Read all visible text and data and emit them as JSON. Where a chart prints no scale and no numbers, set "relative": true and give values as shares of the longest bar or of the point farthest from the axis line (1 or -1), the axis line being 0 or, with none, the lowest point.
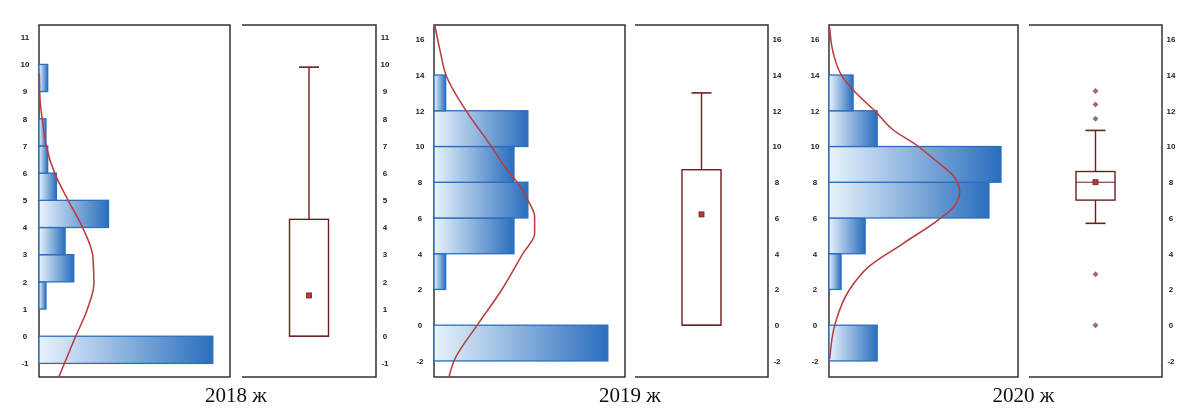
{
  "chart_data": [
    {
      "type": "histogram",
      "orientation": "horizontal",
      "relative": true,
      "title": "2018 ж",
      "bins": [
        -1,
        0,
        1,
        2,
        3,
        4,
        5,
        6,
        7,
        8,
        9,
        10
      ],
      "values": [
        1,
        0,
        0.04,
        0.2,
        0.15,
        0.4,
        0.1,
        0.05,
        0.04,
        0,
        0.05
      ],
      "color": "#2a6ebd",
      "ylim": [
        -1.5,
        11.45
      ],
      "yticks": [
        -1,
        0,
        1,
        2,
        3,
        4,
        5,
        6,
        7,
        8,
        9,
        10,
        11
      ],
      "tick_labels": "y",
      "series": [
        {
          "type": "line",
          "color": "#b83a3a",
          "x": [
            -1.49,
            -0.02,
            0.96,
            1.94,
            2.93,
            3.97,
            5.01,
            6.0,
            6.98,
            7.96,
            8.69,
            9.67
          ],
          "values": [
            0.115,
            0.21,
            0.276,
            0.316,
            0.31,
            0.253,
            0.167,
            0.09,
            0.042,
            0.019,
            0.006,
            0.002
          ]
        }
      ]
    },
    {
      "type": "box",
      "categories": [
        null
      ],
      "color": "#6b1f1f",
      "ylim": [
        -1.5,
        11.45
      ],
      "yticks": [
        -1,
        0,
        1,
        2,
        3,
        4,
        5,
        6,
        7,
        8,
        9,
        10,
        11
      ],
      "tick_labels": "y",
      "boxes": [
        {
          "low": 0,
          "q1": 0,
          "median": 0,
          "q3": 4.3,
          "high": 9.9,
          "mean": 1.5
        }
      ]
    },
    {
      "type": "histogram",
      "orientation": "horizontal",
      "relative": true,
      "title": "2019 ж",
      "bins": [
        -2,
        0,
        2,
        4,
        6,
        8,
        10,
        12,
        14
      ],
      "values": [
        1,
        0,
        0.067,
        0.46,
        0.54,
        0.46,
        0.54,
        0.067
      ],
      "color": "#2a6ebd",
      "ylim": [
        -2.9,
        16.8
      ],
      "yticks": [
        -2,
        0,
        2,
        4,
        6,
        8,
        10,
        12,
        14,
        16
      ],
      "tick_labels": "y",
      "series": [
        {
          "type": "line",
          "color": "#b83a3a",
          "x": [
            -2.9,
            -2,
            0.06,
            1.94,
            4.0,
            5.13,
            6.07,
            7.0,
            7.94,
            8.88,
            10.0,
            11.98,
            13.95,
            15.45,
            16.8
          ],
          "values": [
            0.086,
            0.115,
            0.253,
            0.387,
            0.511,
            0.579,
            0.579,
            0.54,
            0.483,
            0.406,
            0.33,
            0.186,
            0.071,
            0.033,
            0.004
          ]
        }
      ]
    },
    {
      "type": "box",
      "categories": [
        null
      ],
      "color": "#6b1f1f",
      "ylim": [
        -2.9,
        16.8
      ],
      "yticks": [
        -2,
        0,
        2,
        4,
        6,
        8,
        10,
        12,
        14,
        16
      ],
      "tick_labels": "y",
      "boxes": [
        {
          "low": 0,
          "q1": 0,
          "median": 0,
          "q3": 8.7,
          "high": 13,
          "mean": 6.2
        }
      ]
    },
    {
      "type": "histogram",
      "orientation": "horizontal",
      "relative": true,
      "title": "2020 ж",
      "bins": [
        -2,
        0,
        2,
        4,
        6,
        8,
        10,
        12,
        14
      ],
      "values": [
        0.28,
        0,
        0.07,
        0.21,
        0.93,
        1,
        0.28,
        0.14
      ],
      "color": "#2a6ebd",
      "ylim": [
        -2.9,
        16.8
      ],
      "yticks": [
        -2,
        0,
        2,
        4,
        6,
        8,
        10,
        12,
        14,
        16
      ],
      "tick_labels": "y",
      "series": [
        {
          "type": "line",
          "color": "#b83a3a",
          "x": [
            -1.9,
            0.06,
            1.94,
            3.25,
            4.57,
            5.88,
            6.63,
            7.47,
            8.32,
            9.26,
            10.0,
            10.95,
            11.98,
            13.1,
            13.95,
            15.26,
            16.66
          ],
          "values": [
            0.004,
            0.035,
            0.116,
            0.228,
            0.43,
            0.634,
            0.726,
            0.76,
            0.726,
            0.614,
            0.52,
            0.37,
            0.268,
            0.146,
            0.075,
            0.024,
            0.004
          ]
        }
      ]
    },
    {
      "type": "box",
      "categories": [
        null
      ],
      "color": "#6b1f1f",
      "ylim": [
        -2.9,
        16.8
      ],
      "yticks": [
        -2,
        0,
        2,
        4,
        6,
        8,
        10,
        12,
        14,
        16
      ],
      "tick_labels": "y",
      "boxes": [
        {
          "low": 5.7,
          "q1": 7.0,
          "median": 8,
          "q3": 8.6,
          "high": 10.9,
          "mean": 8,
          "outliers": [
            13.1,
            12.35,
            11.55,
            2.85,
            0
          ]
        }
      ]
    }
  ]
}
